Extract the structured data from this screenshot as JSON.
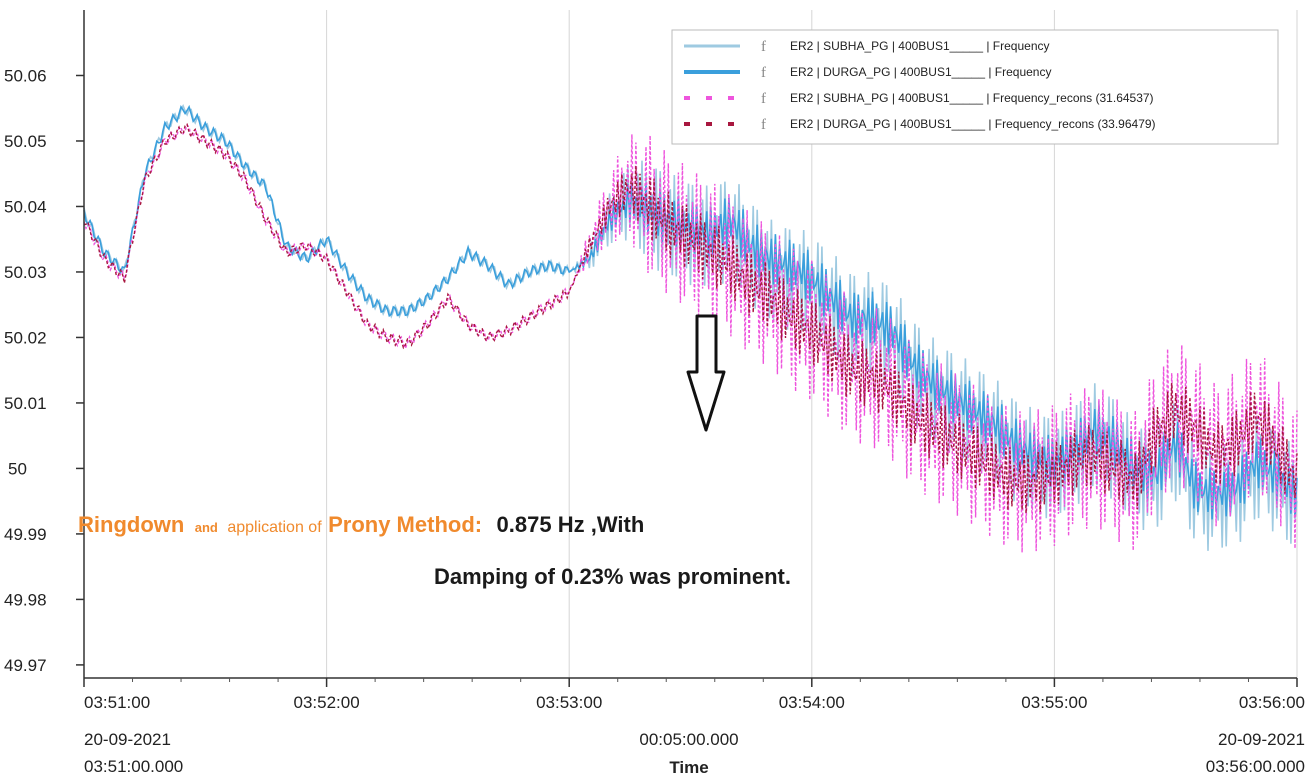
{
  "chart_data": {
    "type": "line",
    "title": "",
    "xlabel": "Time",
    "ylabel": "",
    "x_range_label": "00:05:00.000",
    "x_start_label": [
      "20-09-2021",
      "03:51:00.000"
    ],
    "x_end_label": [
      "20-09-2021",
      "03:56:00.000"
    ],
    "x_ticks": [
      "03:51:00",
      "03:52:00",
      "03:53:00",
      "03:54:00",
      "03:55:00",
      "03:56:00"
    ],
    "y_ticks": [
      "49.97",
      "49.98",
      "49.99",
      "50",
      "50.01",
      "50.02",
      "50.03",
      "50.04",
      "50.05",
      "50.06"
    ],
    "ylim": [
      49.968,
      50.07
    ],
    "xlim": [
      "03:51:00",
      "03:56:00"
    ],
    "grid": true,
    "legend_position": "top-right",
    "x": [
      "03:51:00",
      "03:51:05",
      "03:51:10",
      "03:51:15",
      "03:51:20",
      "03:51:25",
      "03:51:30",
      "03:51:35",
      "03:51:40",
      "03:51:45",
      "03:51:50",
      "03:51:55",
      "03:52:00",
      "03:52:05",
      "03:52:10",
      "03:52:15",
      "03:52:20",
      "03:52:25",
      "03:52:30",
      "03:52:35",
      "03:52:40",
      "03:52:45",
      "03:52:50",
      "03:52:55",
      "03:53:00",
      "03:53:05",
      "03:53:10",
      "03:53:15",
      "03:53:20",
      "03:53:25",
      "03:53:30",
      "03:53:35",
      "03:53:40",
      "03:53:45",
      "03:53:50",
      "03:53:55",
      "03:54:00",
      "03:54:05",
      "03:54:10",
      "03:54:15",
      "03:54:20",
      "03:54:25",
      "03:54:30",
      "03:54:35",
      "03:54:40",
      "03:54:45",
      "03:54:50",
      "03:54:55",
      "03:55:00",
      "03:55:05",
      "03:55:10",
      "03:55:15",
      "03:55:20",
      "03:55:25",
      "03:55:30",
      "03:55:35",
      "03:55:40",
      "03:55:45",
      "03:55:50",
      "03:55:55",
      "03:56:00"
    ],
    "series": [
      {
        "name": "ER2 | SUBHA_PG | 400BUS1_____ | Frequency",
        "color": "#9ecae1",
        "style": "solid",
        "oscillation": 0.008,
        "values": [
          50.039,
          50.033,
          50.03,
          50.045,
          50.052,
          50.055,
          50.052,
          50.05,
          50.046,
          50.043,
          50.034,
          50.032,
          50.035,
          50.03,
          50.026,
          50.024,
          50.024,
          50.026,
          50.029,
          50.033,
          50.031,
          50.028,
          50.03,
          50.031,
          50.03,
          50.032,
          50.038,
          50.041,
          50.039,
          50.037,
          50.036,
          50.035,
          50.037,
          50.033,
          50.03,
          50.029,
          50.028,
          50.025,
          50.022,
          50.022,
          50.02,
          50.015,
          50.012,
          50.01,
          50.008,
          50.006,
          50.003,
          50.001,
          50.0,
          50.002,
          50.005,
          50.003,
          49.999,
          49.998,
          50.003,
          49.996,
          49.995,
          49.996,
          50.0,
          49.998,
          49.995
        ]
      },
      {
        "name": "ER2 | DURGA_PG | 400BUS1_____ | Frequency",
        "color": "#3a9fdc",
        "style": "solid",
        "oscillation": 0.004,
        "values": [
          50.039,
          50.033,
          50.03,
          50.045,
          50.052,
          50.055,
          50.052,
          50.05,
          50.046,
          50.043,
          50.034,
          50.032,
          50.035,
          50.03,
          50.026,
          50.024,
          50.024,
          50.026,
          50.029,
          50.033,
          50.031,
          50.028,
          50.03,
          50.031,
          50.03,
          50.032,
          50.038,
          50.041,
          50.039,
          50.038,
          50.037,
          50.036,
          50.038,
          50.034,
          50.032,
          50.031,
          50.029,
          50.026,
          50.023,
          50.023,
          50.021,
          50.016,
          50.013,
          50.011,
          50.009,
          50.007,
          50.004,
          50.002,
          50.001,
          50.003,
          50.006,
          50.004,
          50.0,
          49.999,
          50.004,
          49.997,
          49.996,
          49.997,
          50.001,
          49.999,
          49.996
        ]
      },
      {
        "name": "ER2 | SUBHA_PG | 400BUS1_____ | Frequency_recons (31.64537)",
        "color": "#ee55dd",
        "style": "dashed",
        "oscillation": 0.011,
        "values": [
          50.038,
          50.032,
          50.029,
          50.044,
          50.05,
          50.052,
          50.05,
          50.048,
          50.044,
          50.038,
          50.033,
          50.034,
          50.032,
          50.027,
          50.022,
          50.02,
          50.019,
          50.022,
          50.026,
          50.022,
          50.02,
          50.021,
          50.023,
          50.025,
          50.027,
          50.034,
          50.04,
          50.043,
          50.04,
          50.037,
          50.035,
          50.033,
          50.031,
          50.028,
          50.026,
          50.023,
          50.021,
          50.018,
          50.015,
          50.014,
          50.012,
          50.008,
          50.006,
          50.004,
          50.002,
          50.0,
          49.998,
          49.998,
          49.999,
          50.001,
          50.002,
          50.0,
          49.998,
          50.005,
          50.009,
          50.006,
          50.002,
          50.004,
          50.008,
          50.003,
          49.998
        ]
      },
      {
        "name": "ER2 | DURGA_PG | 400BUS1_____ | Frequency_recons (33.96479)",
        "color": "#a8173f",
        "style": "dashed",
        "oscillation": 0.005,
        "values": [
          50.038,
          50.032,
          50.029,
          50.044,
          50.05,
          50.052,
          50.05,
          50.048,
          50.044,
          50.038,
          50.033,
          50.034,
          50.032,
          50.027,
          50.022,
          50.02,
          50.019,
          50.022,
          50.026,
          50.022,
          50.02,
          50.021,
          50.023,
          50.025,
          50.027,
          50.034,
          50.04,
          50.043,
          50.04,
          50.037,
          50.035,
          50.033,
          50.031,
          50.028,
          50.026,
          50.023,
          50.021,
          50.018,
          50.015,
          50.014,
          50.012,
          50.008,
          50.006,
          50.004,
          50.002,
          50.0,
          49.998,
          49.998,
          49.999,
          50.001,
          50.002,
          50.0,
          49.998,
          50.005,
          50.009,
          50.006,
          50.002,
          50.004,
          50.008,
          50.003,
          49.998
        ]
      }
    ],
    "annotations": {
      "w1": "Ringdown",
      "w2": "and",
      "w3": "application of",
      "w4": "Prony Method:",
      "w5": "0.875 Hz ,With",
      "line2": "Damping of 0.23% was prominent.",
      "arrow": "down-arrow"
    }
  },
  "colors": {
    "orange": "#f08a2d",
    "dark": "#1a1a1a"
  }
}
